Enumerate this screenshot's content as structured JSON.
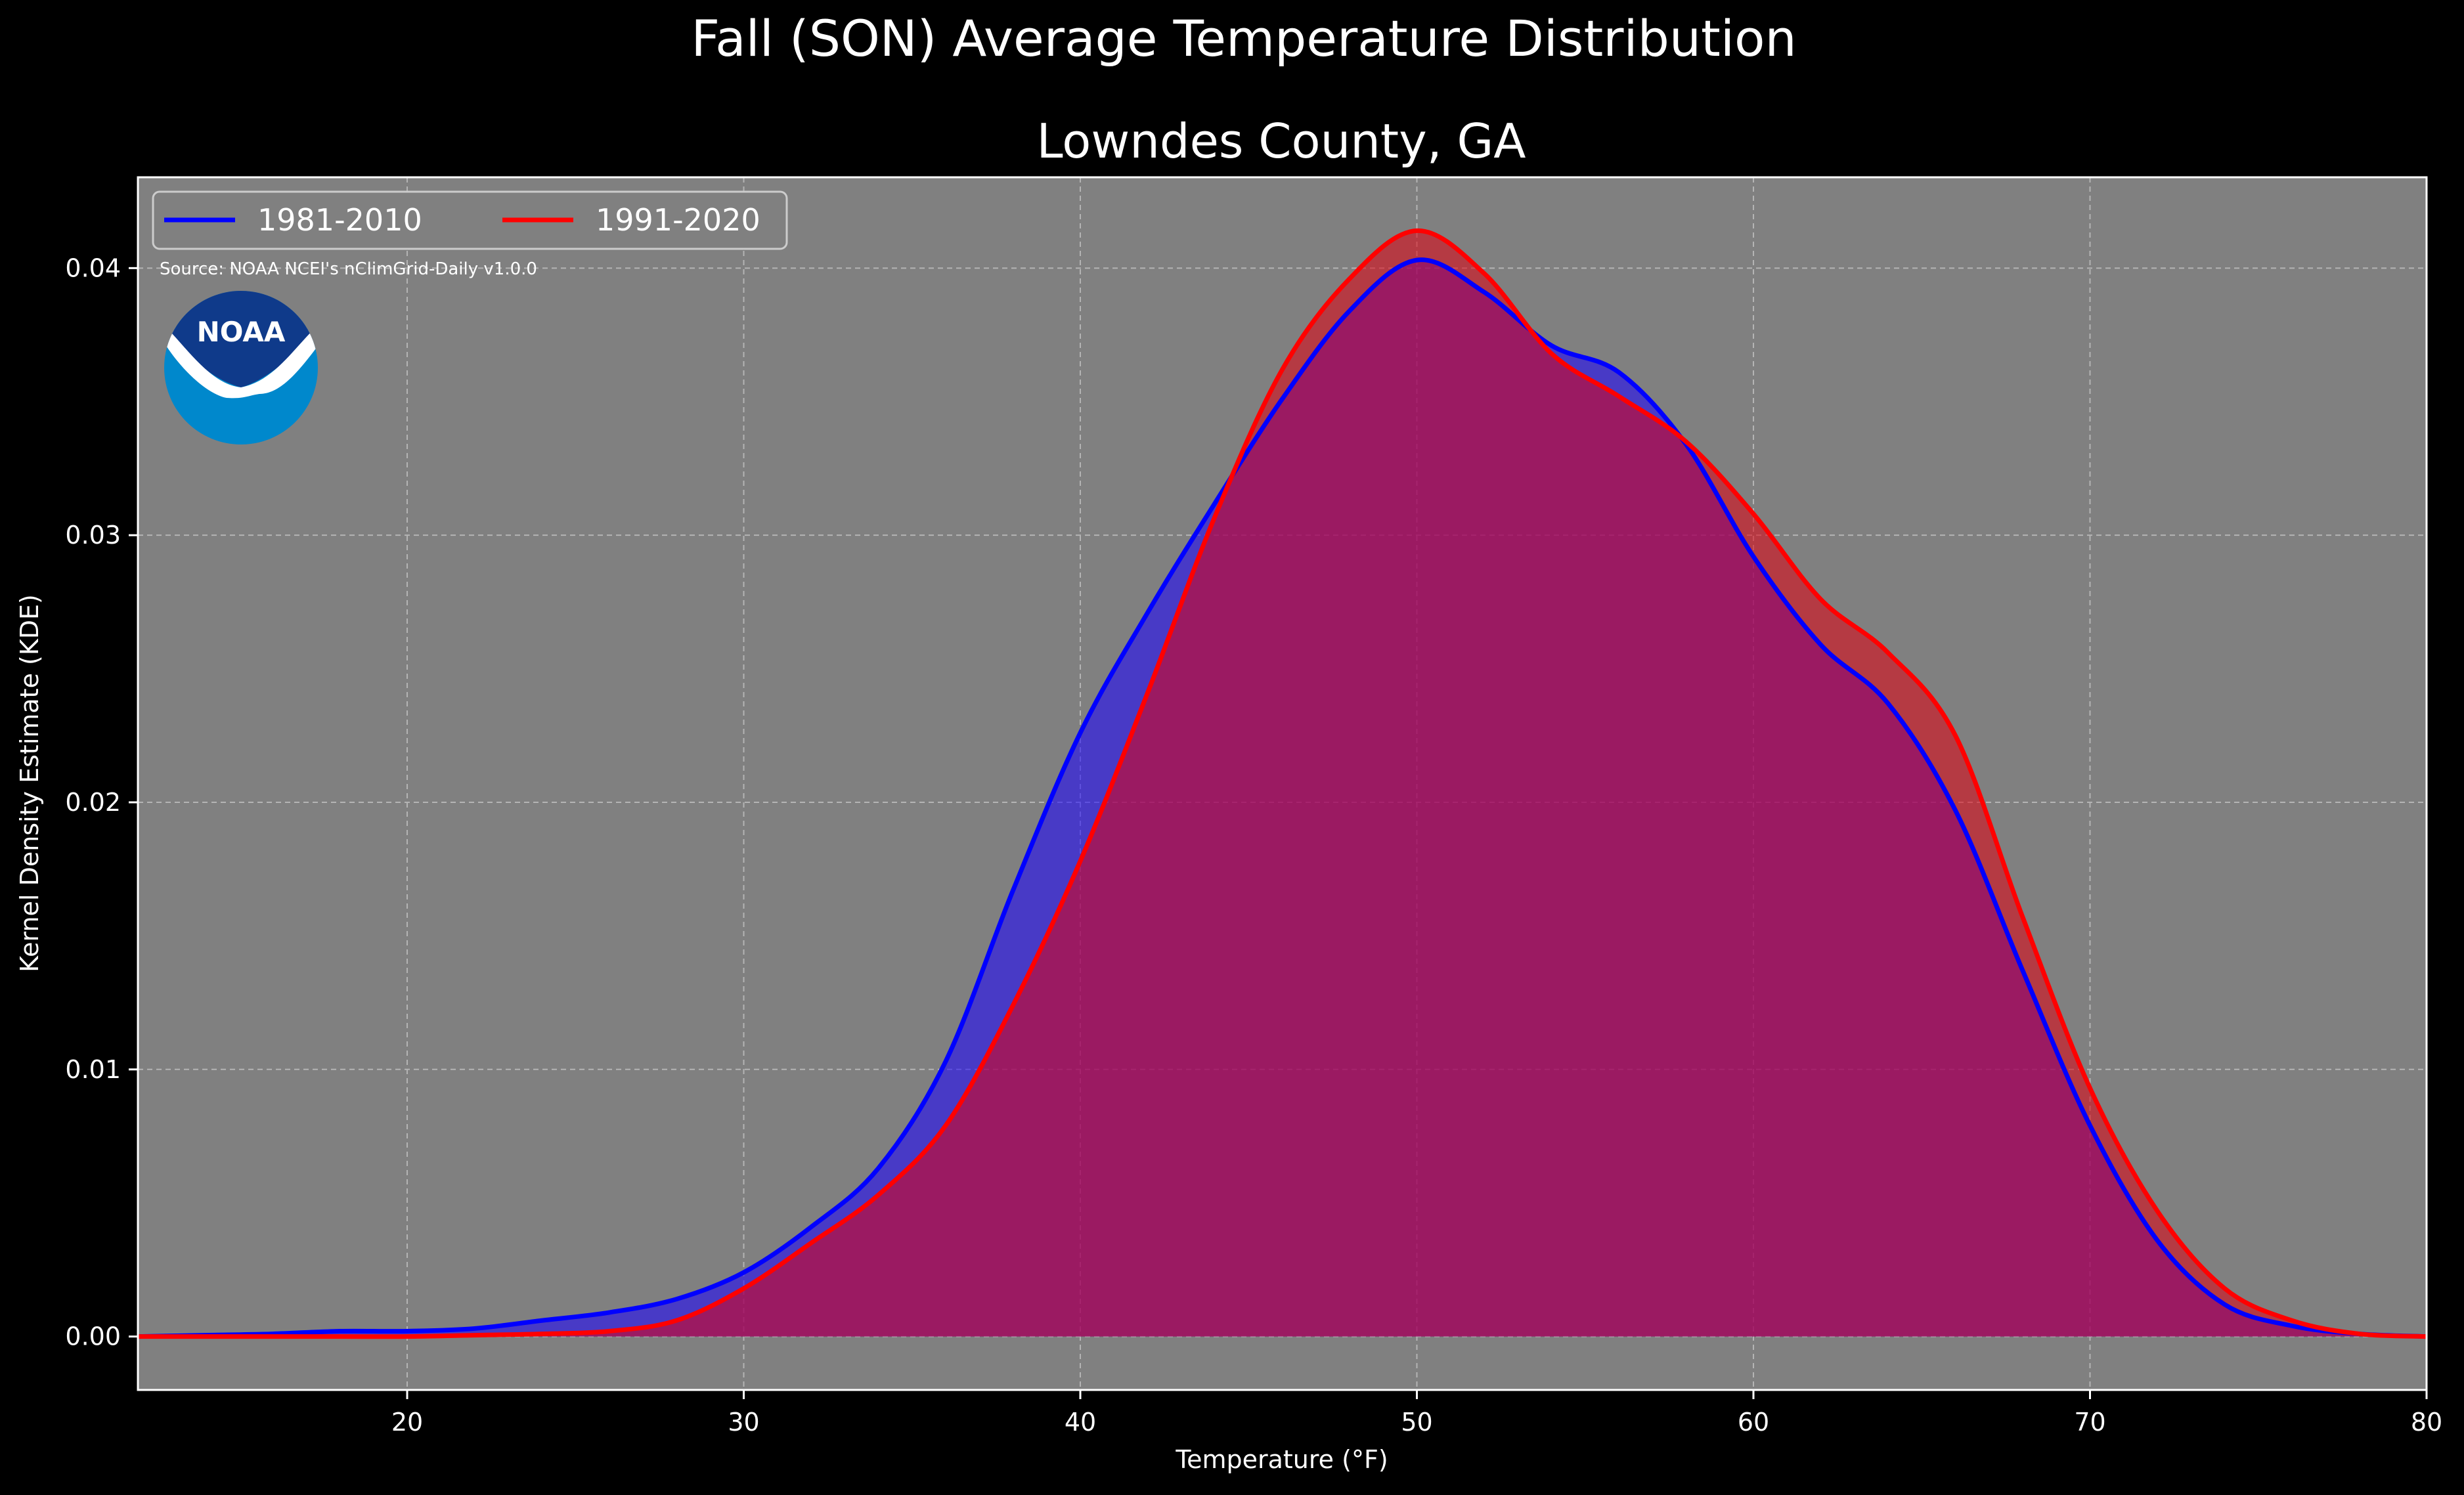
{
  "figure": {
    "suptitle": "Fall (SON) Average Temperature Distribution",
    "title": "Lowndes County, GA",
    "source_note": "Source: NOAA NCEI's nClimGrid-Daily v1.0.0",
    "logo_text": "NOAA",
    "background_color": "#000000",
    "axes_background_color": "#808080"
  },
  "chart_data": {
    "type": "area",
    "title": "Lowndes County, GA",
    "xlabel": "Temperature ($^\\circ$F)",
    "xlabel_display": "Temperature (°F)",
    "ylabel": "Kernel Density Estimate (KDE)",
    "xlim": [
      12,
      80
    ],
    "ylim": [
      -0.002,
      0.0434
    ],
    "xticks": [
      20,
      30,
      40,
      50,
      60,
      70,
      80
    ],
    "yticks": [
      0.0,
      0.01,
      0.02,
      0.03,
      0.04
    ],
    "ytick_labels": [
      "0.00",
      "0.01",
      "0.02",
      "0.03",
      "0.04"
    ],
    "grid": true,
    "legend_position": "top-left",
    "series": [
      {
        "name": "1981-2010",
        "color": "#0000ff",
        "fill_color": "#1a00ff",
        "x": [
          12,
          14,
          16,
          18,
          20,
          22,
          24,
          26,
          28,
          30,
          32,
          34,
          36,
          38,
          40,
          42,
          44,
          46,
          48,
          50,
          52,
          54,
          56,
          58,
          60,
          62,
          64,
          66,
          68,
          70,
          72,
          74,
          76,
          78,
          80
        ],
        "y": [
          0.0,
          5e-05,
          0.0001,
          0.0002,
          0.0002,
          0.0003,
          0.0006,
          0.0009,
          0.0014,
          0.0024,
          0.0041,
          0.0063,
          0.0103,
          0.0167,
          0.0226,
          0.0271,
          0.0312,
          0.0351,
          0.0384,
          0.0403,
          0.0391,
          0.0371,
          0.0361,
          0.0334,
          0.0292,
          0.0259,
          0.0237,
          0.0197,
          0.0137,
          0.0079,
          0.0036,
          0.0012,
          0.0004,
          0.0001,
          0.0
        ]
      },
      {
        "name": "1991-2020",
        "color": "#ff0000",
        "fill_color": "#e00010",
        "x": [
          12,
          14,
          16,
          18,
          20,
          22,
          24,
          26,
          28,
          30,
          32,
          34,
          36,
          38,
          40,
          42,
          44,
          46,
          48,
          50,
          52,
          54,
          56,
          58,
          60,
          62,
          64,
          66,
          68,
          70,
          72,
          74,
          76,
          78,
          80
        ],
        "y": [
          0.0,
          0.0,
          0.0,
          0.0,
          0.0,
          5e-05,
          0.0001,
          0.0002,
          0.0006,
          0.0018,
          0.0035,
          0.0053,
          0.0079,
          0.0124,
          0.0178,
          0.0241,
          0.0307,
          0.0362,
          0.0396,
          0.0414,
          0.0398,
          0.0368,
          0.0352,
          0.0335,
          0.0308,
          0.0276,
          0.0256,
          0.0225,
          0.0157,
          0.0093,
          0.0047,
          0.0018,
          0.0006,
          0.0001,
          0.0
        ]
      }
    ]
  }
}
